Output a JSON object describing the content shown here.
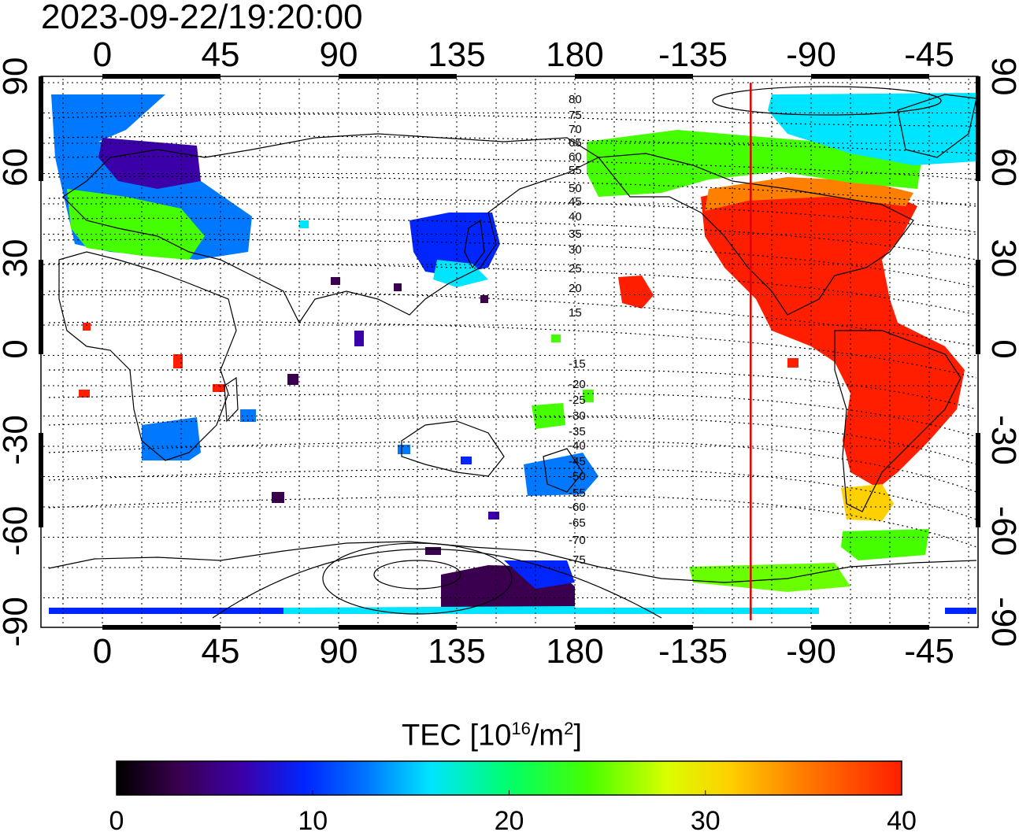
{
  "timestamp": "2023-09-22/19:20:00",
  "colors": {
    "subsolar_line": "#e00000",
    "land_outline": "#000000",
    "grid": "#000000",
    "palette": [
      "#000000",
      "#3a004f",
      "#3c00a8",
      "#0025ff",
      "#0078ff",
      "#00e5ff",
      "#00ff6a",
      "#45ff00",
      "#d8ff00",
      "#ffd000",
      "#ff8000",
      "#ff1e00"
    ]
  },
  "map": {
    "top_lon_ticks": [
      "0",
      "45",
      "90",
      "135",
      "180",
      "-135",
      "-90",
      "-45"
    ],
    "bottom_lon_ticks": [
      "0",
      "45",
      "90",
      "135",
      "180",
      "-135",
      "-90",
      "-45"
    ],
    "left_lat_ticks": [
      "90",
      "60",
      "30",
      "0",
      "-30",
      "-60",
      "-90"
    ],
    "right_lat_ticks": [
      "90",
      "60",
      "30",
      "0",
      "-30",
      "-60",
      "-90"
    ],
    "modip_labels_north": [
      "80",
      "75",
      "70",
      "65",
      "60",
      "55",
      "50",
      "45",
      "40",
      "35",
      "30",
      "25",
      "20",
      "15"
    ],
    "modip_labels_south": [
      "-15",
      "-20",
      "-25",
      "-30",
      "-35",
      "-40",
      "-45",
      "-50",
      "-55",
      "-60",
      "-65",
      "-70",
      "-75"
    ],
    "subsolar_longitude": -113
  },
  "colorbar": {
    "title": "TEC  [10",
    "title_sup1": "16",
    "title_mid": "/m",
    "title_sup2": "2",
    "title_end": "]",
    "ticks": [
      "0",
      "10",
      "20",
      "30",
      "40"
    ],
    "min": 0,
    "max": 40
  }
}
